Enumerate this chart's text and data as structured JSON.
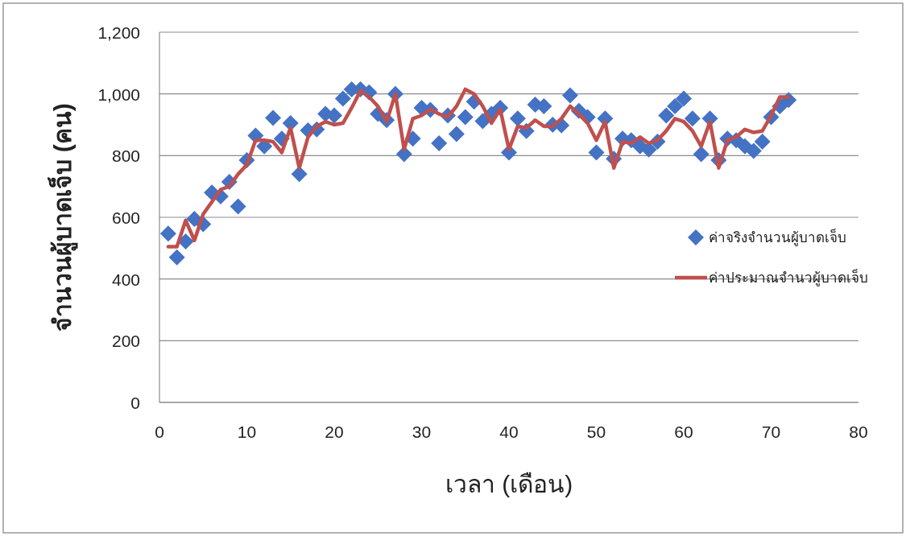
{
  "chart_data": {
    "type": "scatter",
    "xlabel": "เวลา (เดือน)",
    "ylabel": "จำนวนผู้บาดเจ็บ (คน)",
    "x": [
      1,
      2,
      3,
      4,
      5,
      6,
      7,
      8,
      9,
      10,
      11,
      12,
      13,
      14,
      15,
      16,
      17,
      18,
      19,
      20,
      21,
      22,
      23,
      24,
      25,
      26,
      27,
      28,
      29,
      30,
      31,
      32,
      33,
      34,
      35,
      36,
      37,
      38,
      39,
      40,
      41,
      42,
      43,
      44,
      45,
      46,
      47,
      48,
      49,
      50,
      51,
      52,
      53,
      54,
      55,
      56,
      57,
      58,
      59,
      60,
      61,
      62,
      63,
      64,
      65,
      66,
      67,
      68,
      69,
      70,
      71,
      72
    ],
    "series": [
      {
        "name": "ค่าจริงจำนวนผู้บาดเจ็บ",
        "type": "scatter",
        "marker": "diamond",
        "color": "#4472c4",
        "values": [
          547,
          470,
          522,
          595,
          578,
          680,
          668,
          715,
          635,
          785,
          865,
          830,
          922,
          855,
          905,
          740,
          882,
          885,
          935,
          930,
          985,
          1015,
          1015,
          1005,
          935,
          915,
          1000,
          805,
          855,
          955,
          948,
          840,
          930,
          870,
          925,
          975,
          912,
          935,
          955,
          810,
          920,
          880,
          965,
          960,
          900,
          898,
          995,
          945,
          925,
          810,
          920,
          790,
          855,
          850,
          830,
          820,
          845,
          930,
          960,
          985,
          920,
          805,
          920,
          785,
          855,
          850,
          830,
          815,
          845,
          925,
          960,
          980
        ]
      },
      {
        "name": "ค่าประมาณจำนวผู้บาดเจ็บ",
        "type": "line",
        "marker": "none",
        "line_style": "solid",
        "color": "#c0504d",
        "values": [
          505,
          505,
          590,
          525,
          610,
          650,
          690,
          700,
          740,
          770,
          850,
          850,
          845,
          810,
          890,
          760,
          860,
          895,
          910,
          900,
          905,
          955,
          1010,
          990,
          960,
          910,
          1000,
          820,
          920,
          930,
          950,
          935,
          925,
          960,
          1015,
          1000,
          960,
          905,
          950,
          820,
          895,
          890,
          915,
          895,
          895,
          920,
          960,
          935,
          905,
          850,
          910,
          760,
          845,
          840,
          860,
          840,
          850,
          880,
          920,
          910,
          880,
          830,
          910,
          760,
          850,
          860,
          885,
          875,
          880,
          930,
          990,
          990
        ]
      }
    ],
    "xlim": [
      0,
      80
    ],
    "xticks": [
      0,
      10,
      20,
      30,
      40,
      50,
      60,
      70,
      80
    ],
    "ylim": [
      0,
      1200
    ],
    "yticks": [
      0,
      200,
      400,
      600,
      800,
      {
        "value": 1000,
        "label": "1,000"
      },
      {
        "value": 1200,
        "label": "1,200"
      }
    ],
    "grid": "y",
    "legend": "right"
  }
}
